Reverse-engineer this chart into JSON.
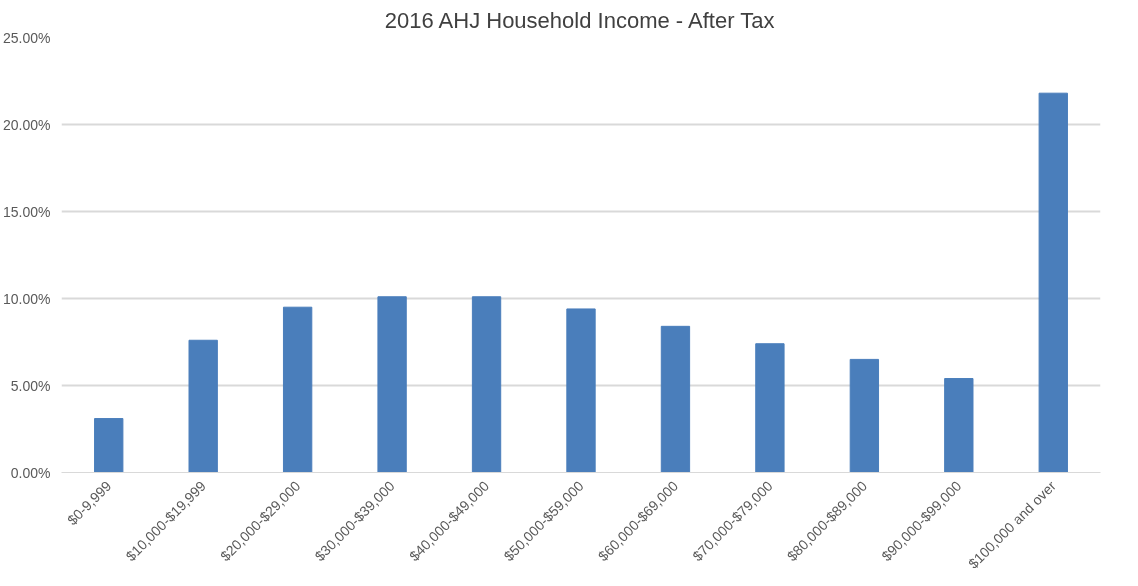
{
  "chart_data": {
    "type": "bar",
    "title": "2016 AHJ Household Income - After Tax",
    "categories": [
      "$0-9,999",
      "$10,000-$19,999",
      "$20,000-$29,000",
      "$30,000-$39,000",
      "$40,000-$49,000",
      "$50,000-$59,000",
      "$60,000-$69,000",
      "$70,000-$79,000",
      "$80,000-$89,000",
      "$90,000-$99,000",
      "$100,000 and over"
    ],
    "values": [
      3.1,
      7.6,
      9.5,
      10.1,
      10.1,
      9.4,
      8.4,
      7.4,
      6.5,
      5.4,
      21.8
    ],
    "color": "#4a7ebb",
    "ylim": [
      0,
      25
    ],
    "yticks": [
      {
        "value": 0,
        "label": "0.00%"
      },
      {
        "value": 5,
        "label": "5.00%"
      },
      {
        "value": 10,
        "label": "10.00%"
      },
      {
        "value": 15,
        "label": "15.00%"
      },
      {
        "value": 20,
        "label": "20.00%"
      },
      {
        "value": 25,
        "label": "25.00%"
      }
    ],
    "grid": "y"
  }
}
